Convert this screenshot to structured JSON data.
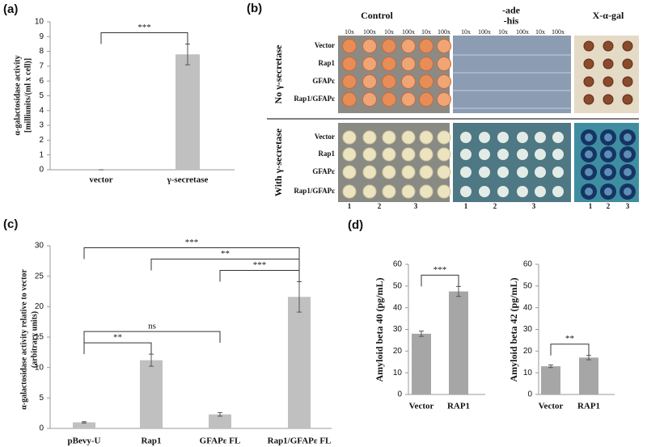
{
  "chart_data": [
    {
      "type": "bar",
      "panel_label": "(a)",
      "ylabel": [
        "α-galactosidase activity",
        "[milliunits/(ml x cell)]"
      ],
      "categories": [
        "vector",
        "γ-secretase"
      ],
      "values": [
        0,
        7.8
      ],
      "errors": [
        0,
        0.7
      ],
      "color": "#c0c0c0",
      "ylim": [
        0,
        10
      ],
      "yticks": [
        0,
        1,
        2,
        3,
        4,
        5,
        6,
        7,
        8,
        9,
        10
      ],
      "brackets": [
        {
          "from": 0,
          "to": 1,
          "label": "***"
        }
      ]
    },
    {
      "type": "bar",
      "panel_label": "(c)",
      "ylabel": [
        "α-galactosidase activity relative to vector",
        "(arbitrary units)"
      ],
      "categories": [
        "pBevy-U",
        "Rap1",
        "GFAPε FL",
        "Rap1/GFAPε FL"
      ],
      "values": [
        1,
        11.2,
        2.3,
        21.6
      ],
      "errors": [
        0.1,
        1,
        0.3,
        2.5
      ],
      "color": "#c0c0c0",
      "ylim": [
        0,
        30
      ],
      "yticks": [
        0,
        5,
        10,
        15,
        20,
        25,
        30
      ],
      "brackets": [
        {
          "from": 0,
          "to": 1,
          "label": "**"
        },
        {
          "from": 0,
          "to": 2,
          "label": "ns"
        },
        {
          "from": 2,
          "to": 3,
          "label": "***"
        },
        {
          "from": 1,
          "to": 3,
          "label": "**"
        },
        {
          "from": 0,
          "to": 3,
          "label": "***"
        }
      ]
    },
    {
      "type": "bar",
      "panel_label": "(d)",
      "ylabel": "Amyloid beta 40 (pg/mL)",
      "categories": [
        "Vector",
        "RAP1"
      ],
      "values": [
        28,
        47.5
      ],
      "errors": [
        1.2,
        2.3
      ],
      "color": "#a6a6a6",
      "ylim": [
        0,
        60
      ],
      "yticks": [
        0,
        10,
        20,
        30,
        40,
        50,
        60
      ],
      "brackets": [
        {
          "from": 0,
          "to": 1,
          "label": "***"
        }
      ]
    },
    {
      "type": "bar",
      "ylabel": "Amyloid beta 42 (pg/mL)",
      "categories": [
        "Vector",
        "RAP1"
      ],
      "values": [
        13,
        17
      ],
      "errors": [
        0.6,
        1
      ],
      "color": "#a6a6a6",
      "ylim": [
        0,
        60
      ],
      "yticks": [
        0,
        10,
        20,
        30,
        40,
        50,
        60
      ],
      "brackets": [
        {
          "from": 0,
          "to": 1,
          "label": "**"
        }
      ]
    }
  ],
  "panel_b": {
    "label": "(b)",
    "columns": [
      {
        "title": [
          "Control"
        ],
        "dilutions": [
          "10x",
          "100x",
          "10x",
          "100x",
          "10x",
          "100x"
        ]
      },
      {
        "title": [
          "-ade",
          "-his"
        ],
        "dilutions": [
          "10x",
          "100x",
          "10x",
          "100x",
          "10x",
          "100x"
        ]
      },
      {
        "title": [
          "X-α-gal"
        ]
      }
    ],
    "groups": [
      {
        "name": "No γ-secretase",
        "rows": [
          "Vector",
          "Rap1",
          "GFAPε",
          "Rap1/GFAPε"
        ]
      },
      {
        "name": "With γ-secretase",
        "rows": [
          "Vector",
          "Rap1",
          "GFAPε",
          "Rap1/GFAPε"
        ]
      }
    ],
    "strain_numbers": [
      "1",
      "2",
      "3"
    ]
  }
}
